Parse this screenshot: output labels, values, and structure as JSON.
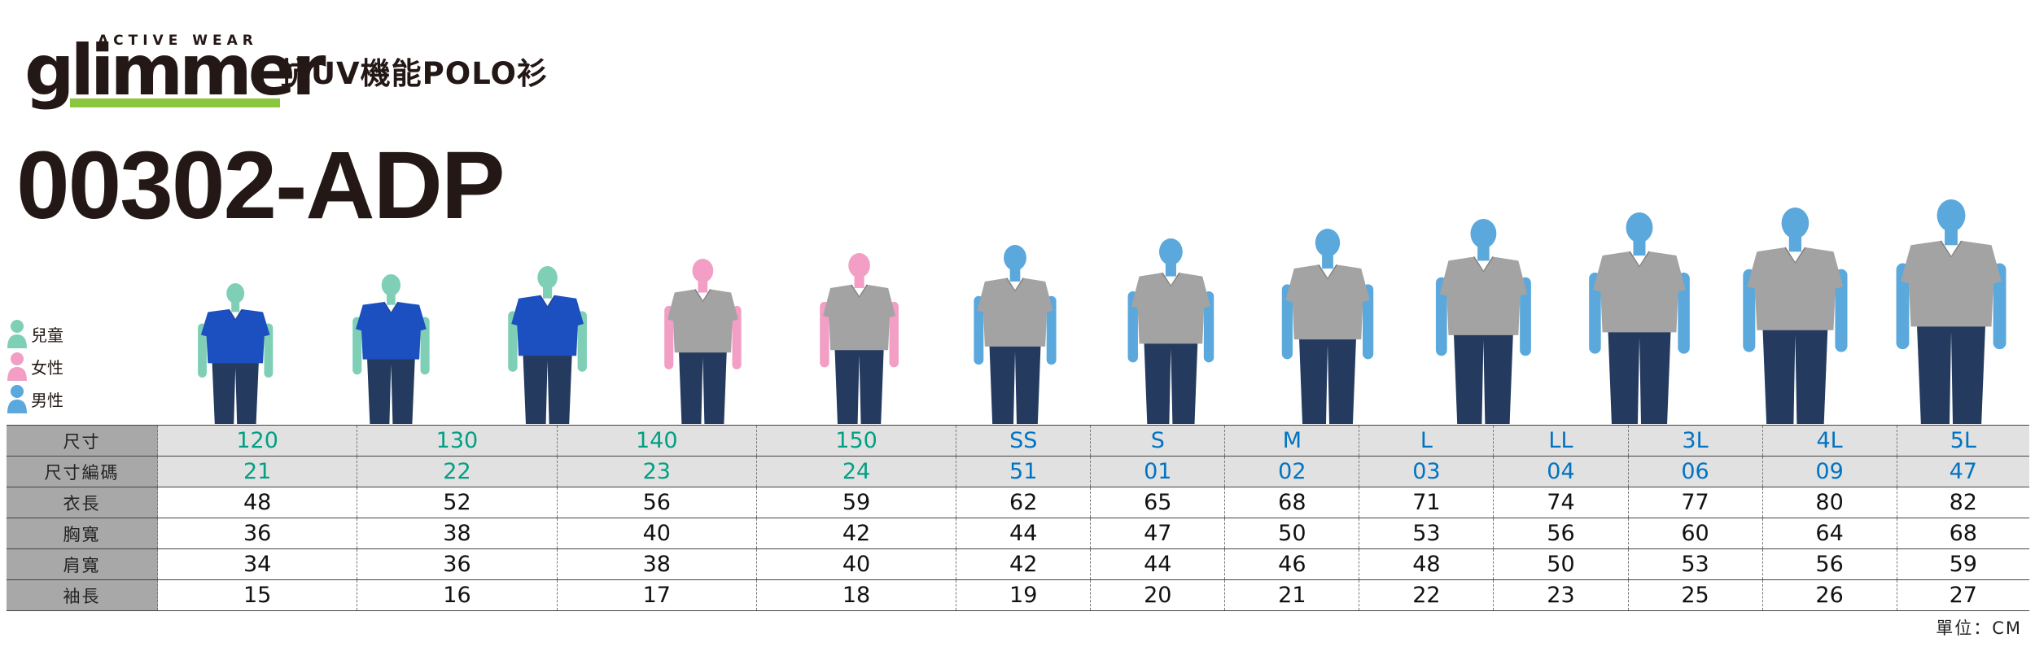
{
  "brand": {
    "tagline": "ACTIVE WEAR",
    "name": "glimmer",
    "colors": {
      "text": "#231815",
      "accent_bar": "#8cc63f"
    }
  },
  "product": {
    "subtitle": "抗UV機能POLO衫",
    "model": "00302-ADP"
  },
  "legend": [
    {
      "label": "兒童",
      "icon": "child-person-icon",
      "color": "#7fcfb7"
    },
    {
      "label": "女性",
      "icon": "female-person-icon",
      "color": "#f29ec5"
    },
    {
      "label": "男性",
      "icon": "male-person-icon",
      "color": "#5aa8dc"
    }
  ],
  "figures": [
    {
      "size": "120",
      "group": "child",
      "skin": "#7fcfb7",
      "shirt": "#1c4fbf"
    },
    {
      "size": "130",
      "group": "child",
      "skin": "#7fcfb7",
      "shirt": "#1c4fbf"
    },
    {
      "size": "140",
      "group": "child",
      "skin": "#7fcfb7",
      "shirt": "#1c4fbf"
    },
    {
      "size": "150",
      "group": "female",
      "skin": "#f29ec5",
      "shirt": "#a3a3a3"
    },
    {
      "size": "SS",
      "group": "female",
      "skin": "#f29ec5",
      "shirt": "#a3a3a3"
    },
    {
      "size": "S",
      "group": "male",
      "skin": "#5aa8dc",
      "shirt": "#a3a3a3"
    },
    {
      "size": "M",
      "group": "male",
      "skin": "#5aa8dc",
      "shirt": "#a3a3a3"
    },
    {
      "size": "L",
      "group": "male",
      "skin": "#5aa8dc",
      "shirt": "#a3a3a3"
    },
    {
      "size": "LL",
      "group": "male",
      "skin": "#5aa8dc",
      "shirt": "#a3a3a3"
    },
    {
      "size": "3L",
      "group": "male",
      "skin": "#5aa8dc",
      "shirt": "#a3a3a3"
    },
    {
      "size": "4L",
      "group": "male",
      "skin": "#5aa8dc",
      "shirt": "#a3a3a3"
    },
    {
      "size": "5L",
      "group": "male",
      "skin": "#5aa8dc",
      "shirt": "#a3a3a3"
    }
  ],
  "table": {
    "rows": [
      {
        "label": "尺寸",
        "values": [
          "120",
          "130",
          "140",
          "150",
          "SS",
          "S",
          "M",
          "L",
          "LL",
          "3L",
          "4L",
          "5L"
        ]
      },
      {
        "label": "尺寸編碼",
        "values": [
          "21",
          "22",
          "23",
          "24",
          "51",
          "01",
          "02",
          "03",
          "04",
          "06",
          "09",
          "47"
        ]
      },
      {
        "label": "衣長",
        "values": [
          "48",
          "52",
          "56",
          "59",
          "62",
          "65",
          "68",
          "71",
          "74",
          "77",
          "80",
          "82"
        ]
      },
      {
        "label": "胸寬",
        "values": [
          "36",
          "38",
          "40",
          "42",
          "44",
          "47",
          "50",
          "53",
          "56",
          "60",
          "64",
          "68"
        ]
      },
      {
        "label": "肩寬",
        "values": [
          "34",
          "36",
          "38",
          "40",
          "42",
          "44",
          "46",
          "48",
          "50",
          "53",
          "56",
          "59"
        ]
      },
      {
        "label": "袖長",
        "values": [
          "15",
          "16",
          "17",
          "18",
          "19",
          "20",
          "21",
          "22",
          "23",
          "25",
          "26",
          "27"
        ]
      }
    ],
    "colors": {
      "kid": "#00a083",
      "adult": "#0073c2",
      "head_bg": "#a8a8a8",
      "stripe_bg": "#e1e1e1"
    }
  },
  "unit_note": "單位：CM"
}
